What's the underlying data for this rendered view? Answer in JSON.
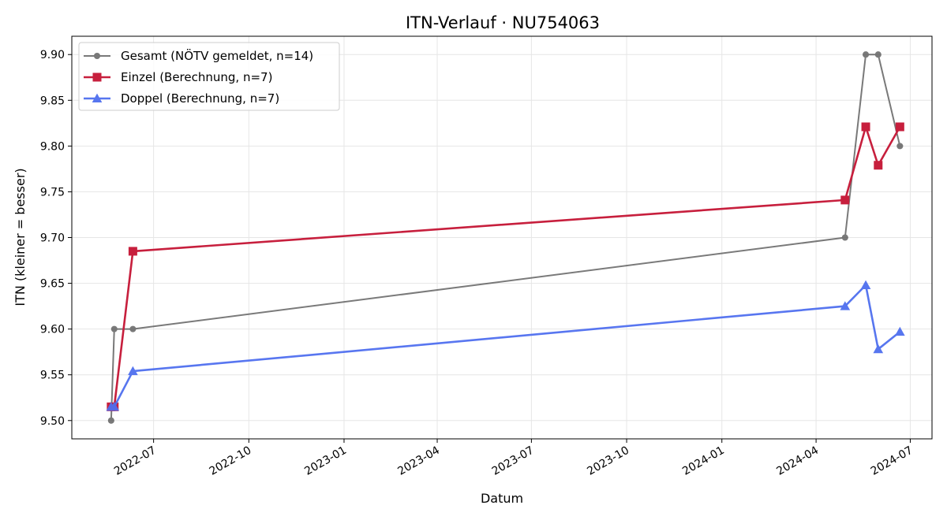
{
  "chart_data": {
    "type": "line",
    "title": "ITN-Verlauf · NU754063",
    "xlabel": "Datum",
    "ylabel": "ITN  (kleiner = besser)",
    "ylim": [
      9.48,
      9.92
    ],
    "xlim": [
      "2022-04-13",
      "2024-07-22"
    ],
    "grid": true,
    "legend_position": "top-left",
    "x_ticks": [
      "2022-07",
      "2022-10",
      "2023-01",
      "2023-04",
      "2023-07",
      "2023-10",
      "2024-01",
      "2024-04",
      "2024-07"
    ],
    "y_ticks": [
      9.5,
      9.55,
      9.6,
      9.65,
      9.7,
      9.75,
      9.8,
      9.85,
      9.9
    ],
    "series": [
      {
        "name": "Gesamt (NÖTV gemeldet, n=14)",
        "color": "#4d4d4d",
        "marker": "circle",
        "x": [
          "2022-05-21",
          "2022-05-24",
          "2022-06-11",
          "2024-04-29",
          "2024-05-19",
          "2024-05-31",
          "2024-06-21"
        ],
        "values": [
          9.5,
          9.6,
          9.6,
          9.7,
          9.9,
          9.9,
          9.8
        ]
      },
      {
        "name": "Einzel (Berechnung, n=7)",
        "color": "#c71f3d",
        "marker": "square",
        "x": [
          "2022-05-21",
          "2022-05-24",
          "2022-06-11",
          "2024-04-29",
          "2024-05-19",
          "2024-05-31",
          "2024-06-21"
        ],
        "values": [
          9.515,
          9.515,
          9.685,
          9.741,
          9.821,
          9.779,
          9.821
        ]
      },
      {
        "name": "Doppel (Berechnung, n=7)",
        "color": "#4f6fef",
        "marker": "triangle",
        "x": [
          "2022-05-21",
          "2022-05-24",
          "2022-06-11",
          "2024-04-29",
          "2024-05-19",
          "2024-05-31",
          "2024-06-21"
        ],
        "values": [
          9.515,
          9.515,
          9.554,
          9.625,
          9.648,
          9.578,
          9.597
        ]
      }
    ]
  }
}
